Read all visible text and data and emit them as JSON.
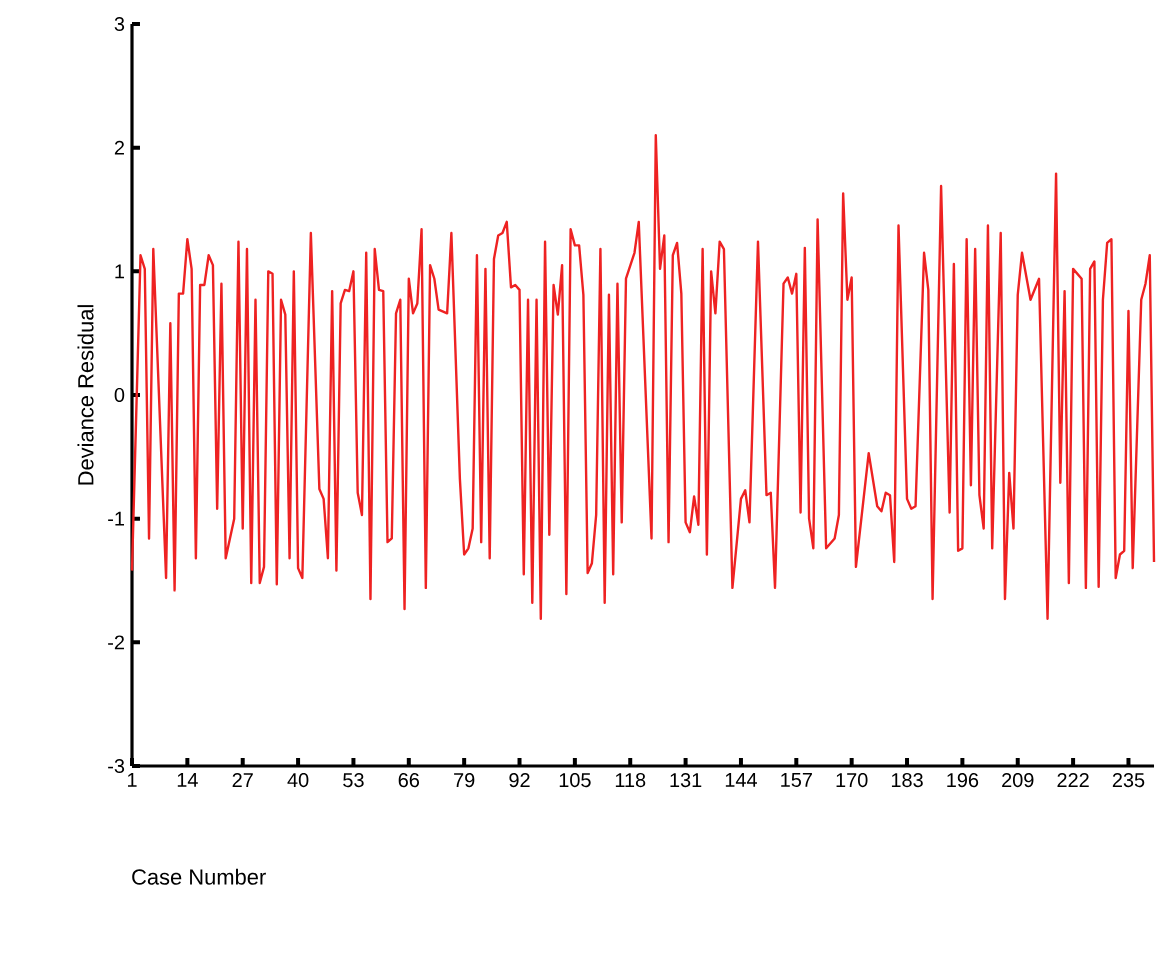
{
  "chart_data": {
    "type": "line",
    "xlabel": "Case Number",
    "ylabel": "Deviance Residual",
    "color": "#ee2222",
    "marker": "none",
    "line_style": "solid",
    "xlim": [
      1,
      241
    ],
    "ylim": [
      -3,
      3
    ],
    "xticks": [
      1,
      14,
      27,
      40,
      53,
      66,
      79,
      92,
      105,
      118,
      131,
      144,
      157,
      170,
      183,
      196,
      209,
      222,
      235
    ],
    "yticks": [
      -3,
      -2,
      -1,
      0,
      1,
      2,
      3
    ],
    "x": [
      1,
      3,
      4,
      5,
      6,
      9,
      10,
      11,
      12,
      13,
      14,
      15,
      16,
      17,
      18,
      19,
      20,
      21,
      22,
      23,
      25,
      26,
      27,
      28,
      29,
      30,
      31,
      32,
      33,
      34,
      35,
      36,
      37,
      38,
      39,
      40,
      41,
      43,
      45,
      46,
      47,
      48,
      49,
      50,
      51,
      52,
      53,
      54,
      55,
      56,
      57,
      58,
      59,
      60,
      61,
      62,
      63,
      64,
      65,
      66,
      67,
      68,
      69,
      70,
      71,
      72,
      73,
      75,
      76,
      78,
      79,
      80,
      81,
      82,
      83,
      84,
      85,
      86,
      87,
      88,
      89,
      90,
      91,
      92,
      93,
      94,
      95,
      96,
      97,
      98,
      99,
      100,
      101,
      102,
      103,
      104,
      105,
      106,
      107,
      108,
      109,
      110,
      111,
      112,
      113,
      114,
      115,
      116,
      117,
      119,
      120,
      123,
      124,
      125,
      126,
      127,
      128,
      129,
      130,
      131,
      132,
      133,
      134,
      135,
      136,
      137,
      138,
      139,
      140,
      142,
      144,
      145,
      146,
      148,
      150,
      151,
      152,
      154,
      155,
      156,
      157,
      158,
      159,
      160,
      161,
      162,
      164,
      166,
      167,
      168,
      169,
      170,
      171,
      174,
      176,
      177,
      178,
      179,
      180,
      181,
      183,
      184,
      185,
      187,
      188,
      189,
      191,
      193,
      194,
      195,
      196,
      197,
      198,
      199,
      200,
      201,
      202,
      203,
      205,
      206,
      207,
      208,
      209,
      210,
      212,
      214,
      216,
      218,
      219,
      220,
      221,
      222,
      224,
      225,
      226,
      227,
      228,
      229,
      230,
      231,
      232,
      233,
      234,
      235,
      236,
      238,
      239,
      240,
      241
    ],
    "values": [
      -1.42,
      1.13,
      1.02,
      -1.16,
      1.18,
      -1.48,
      0.58,
      -1.58,
      0.82,
      0.82,
      1.26,
      1.02,
      -1.32,
      0.89,
      0.89,
      1.13,
      1.05,
      -0.92,
      0.9,
      -1.32,
      -1.0,
      1.24,
      -1.08,
      1.18,
      -1.52,
      0.77,
      -1.52,
      -1.39,
      1.0,
      0.98,
      -1.53,
      0.77,
      0.65,
      -1.32,
      1.0,
      -1.4,
      -1.48,
      1.31,
      -0.76,
      -0.84,
      -1.32,
      0.84,
      -1.42,
      0.74,
      0.85,
      0.84,
      1.0,
      -0.79,
      -0.97,
      1.15,
      -1.65,
      1.18,
      0.85,
      0.84,
      -1.19,
      -1.16,
      0.66,
      0.77,
      -1.73,
      0.94,
      0.66,
      0.74,
      1.34,
      -1.56,
      1.05,
      0.94,
      0.69,
      0.66,
      1.31,
      -0.68,
      -1.29,
      -1.24,
      -1.08,
      1.13,
      -1.19,
      1.02,
      -1.32,
      1.1,
      1.29,
      1.31,
      1.4,
      0.87,
      0.89,
      0.85,
      -1.45,
      0.77,
      -1.68,
      0.77,
      -1.81,
      1.24,
      -1.13,
      0.89,
      0.65,
      1.05,
      -1.61,
      1.34,
      1.21,
      1.21,
      0.81,
      -1.44,
      -1.36,
      -0.97,
      1.18,
      -1.68,
      0.81,
      -1.45,
      0.9,
      -1.03,
      0.94,
      1.15,
      1.4,
      -1.16,
      2.1,
      1.02,
      1.29,
      -1.19,
      1.13,
      1.23,
      0.82,
      -1.03,
      -1.11,
      -0.82,
      -1.05,
      1.18,
      -1.29,
      1.0,
      0.66,
      1.24,
      1.18,
      -1.56,
      -0.84,
      -0.77,
      -1.03,
      1.24,
      -0.81,
      -0.79,
      -1.56,
      0.9,
      0.95,
      0.82,
      0.98,
      -0.95,
      1.19,
      -1.0,
      -1.24,
      1.42,
      -1.24,
      -1.16,
      -0.97,
      1.63,
      0.77,
      0.95,
      -1.39,
      -0.47,
      -0.9,
      -0.94,
      -0.79,
      -0.81,
      -1.35,
      1.37,
      -0.84,
      -0.92,
      -0.9,
      1.15,
      0.85,
      -1.65,
      1.69,
      -0.95,
      1.06,
      -1.26,
      -1.24,
      1.26,
      -0.73,
      1.18,
      -0.81,
      -1.08,
      1.37,
      -1.24,
      1.31,
      -1.65,
      -0.63,
      -1.08,
      0.81,
      1.15,
      0.77,
      0.94,
      -1.81,
      1.79,
      -0.71,
      0.84,
      -1.52,
      1.02,
      0.94,
      -1.56,
      1.02,
      1.08,
      -1.55,
      0.77,
      1.23,
      1.26,
      -1.48,
      -1.29,
      -1.26,
      0.68,
      -1.4,
      0.77,
      0.9,
      1.13,
      -1.35
    ]
  }
}
